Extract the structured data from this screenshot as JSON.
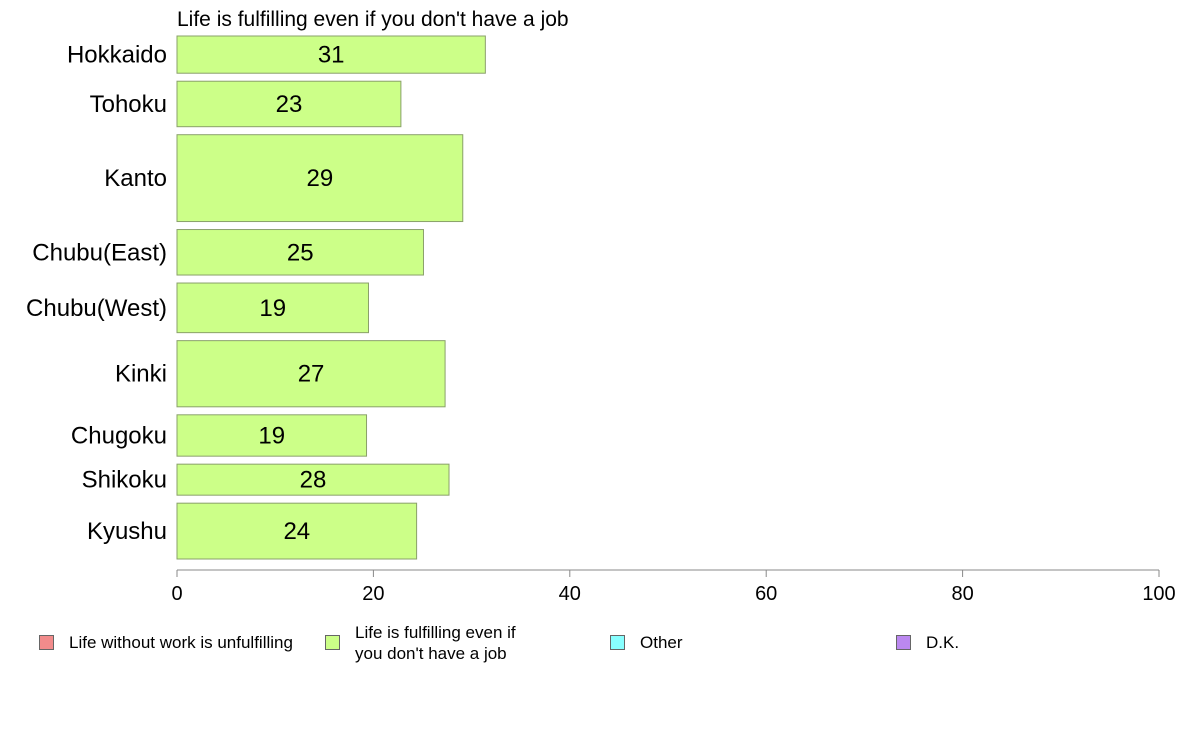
{
  "chart_data": {
    "type": "bar",
    "orientation": "horizontal",
    "title": "Life is fulfilling even if you don't have a job",
    "categories": [
      "Hokkaido",
      "Tohoku",
      "Kanto",
      "Chubu(East)",
      "Chubu(West)",
      "Kinki",
      "Chugoku",
      "Shikoku",
      "Kyushu"
    ],
    "series": [
      {
        "name": "Life is fulfilling even if you don't have a job",
        "values": [
          31,
          23,
          29,
          25,
          19,
          27,
          19,
          28,
          24
        ],
        "color": "#ccff88"
      }
    ],
    "exact_values": [
      31.4,
      22.8,
      29.1,
      25.1,
      19.5,
      27.3,
      19.3,
      27.7,
      24.4
    ],
    "relative_bar_thickness": [
      1.8,
      2.2,
      4.2,
      2.2,
      2.4,
      3.2,
      2.0,
      1.5,
      2.7
    ],
    "xlim": [
      0,
      100
    ],
    "xticks": [
      0,
      20,
      40,
      60,
      80,
      100
    ],
    "grid": false,
    "legend_position": "bottom",
    "legend": [
      {
        "label": "Life without work is unfulfilling",
        "color": "#f28b8b"
      },
      {
        "label": "Life is fulfilling even if\nyou don't have a job",
        "color": "#ccff88"
      },
      {
        "label": "Other",
        "color": "#88ffff"
      },
      {
        "label": "D.K.",
        "color": "#bb88f0"
      }
    ]
  }
}
